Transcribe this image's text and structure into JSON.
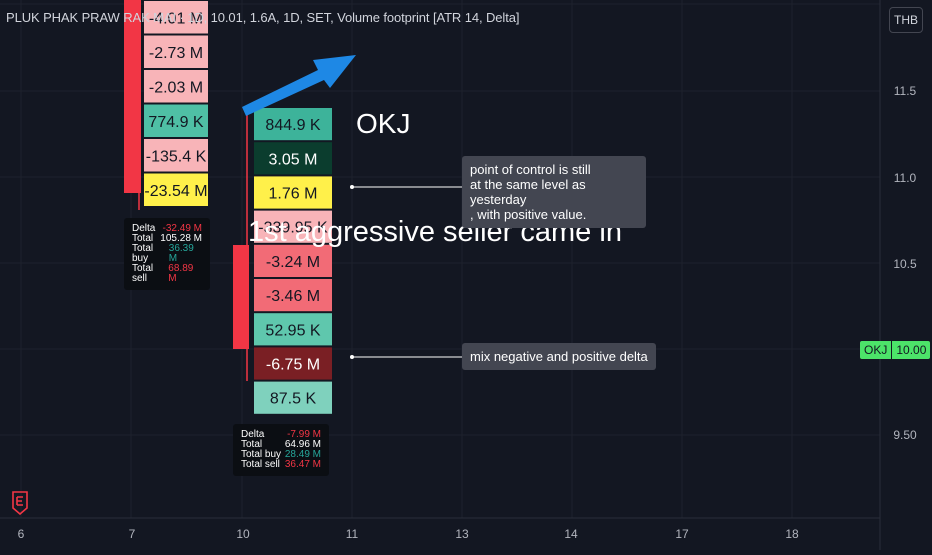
{
  "header": {
    "symbol_line": "PLUK PHAK PRAW RAK MAI · 1D, 10.01, 1.6A, 1D, SET, Volume footprint [ATR 14, Delta]",
    "currency": "THB"
  },
  "y_axis": {
    "ticks": [
      "11.5",
      "11.0",
      "10.5",
      "10.00",
      "9.50"
    ],
    "last_price_symbol": "OKJ",
    "last_price": "10.00",
    "last_price_color": "#4ce369"
  },
  "x_axis": {
    "ticks": [
      "6",
      "7",
      "10",
      "11",
      "13",
      "14",
      "17",
      "18"
    ]
  },
  "annotations": {
    "okj": "OKJ",
    "seller": "1st aggressive seller came in",
    "poc_note": "point of control is still\nat the same level as yesterday\n, with positive value.",
    "mix_note": "mix negative and positive delta"
  },
  "stats": [
    {
      "delta_label": "Delta",
      "delta": "-32.49 M",
      "total_label": "Total",
      "total": "105.28 M",
      "buy_label": "Total buy",
      "buy": "36.39 M",
      "sell_label": "Total sell",
      "sell": "68.89 M"
    },
    {
      "delta_label": "Delta",
      "delta": "-7.99 M",
      "total_label": "Total",
      "total": "64.96 M",
      "buy_label": "Total buy",
      "buy": "28.49 M",
      "sell_label": "Total sell",
      "sell": "36.47 M"
    }
  ],
  "colors": {
    "background": "#131722",
    "bear_candle": "#f23645",
    "arrow": "#1e88e5"
  },
  "chart_data": {
    "type": "footprint",
    "candles": [
      {
        "date": "7",
        "direction": "down",
        "rows": [
          {
            "label": "-4.01 M",
            "value": -4.01,
            "color": "#f8b4b8"
          },
          {
            "label": "-2.73 M",
            "value": -2.73,
            "color": "#f8b4b8"
          },
          {
            "label": "-2.03 M",
            "value": -2.03,
            "color": "#f8b4b8"
          },
          {
            "label": "774.9 K",
            "value": 0.7749,
            "color": "#4fbfa5"
          },
          {
            "label": "-135.4 K",
            "value": -0.1354,
            "color": "#f8b4b8"
          },
          {
            "label": "-23.54 M",
            "value": -23.54,
            "color": "#fff04a"
          }
        ]
      },
      {
        "date": "10",
        "direction": "down",
        "rows": [
          {
            "label": "844.9 K",
            "value": 0.8449,
            "color": "#3db39a"
          },
          {
            "label": "3.05 M",
            "value": 3.05,
            "color": "#0b3d2e"
          },
          {
            "label": "1.76 M",
            "value": 1.76,
            "color": "#fff04a"
          },
          {
            "label": "-339.95 K",
            "value": -0.33995,
            "color": "#f8b4b8"
          },
          {
            "label": "-3.24 M",
            "value": -3.24,
            "color": "#f26b76"
          },
          {
            "label": "-3.46 M",
            "value": -3.46,
            "color": "#f26b76"
          },
          {
            "label": "52.95 K",
            "value": 0.05295,
            "color": "#5fc7ad"
          },
          {
            "label": "-6.75 M",
            "value": -6.75,
            "color": "#7a1f24"
          },
          {
            "label": "87.5 K",
            "value": 0.0875,
            "color": "#7fd1bd"
          }
        ]
      }
    ]
  }
}
